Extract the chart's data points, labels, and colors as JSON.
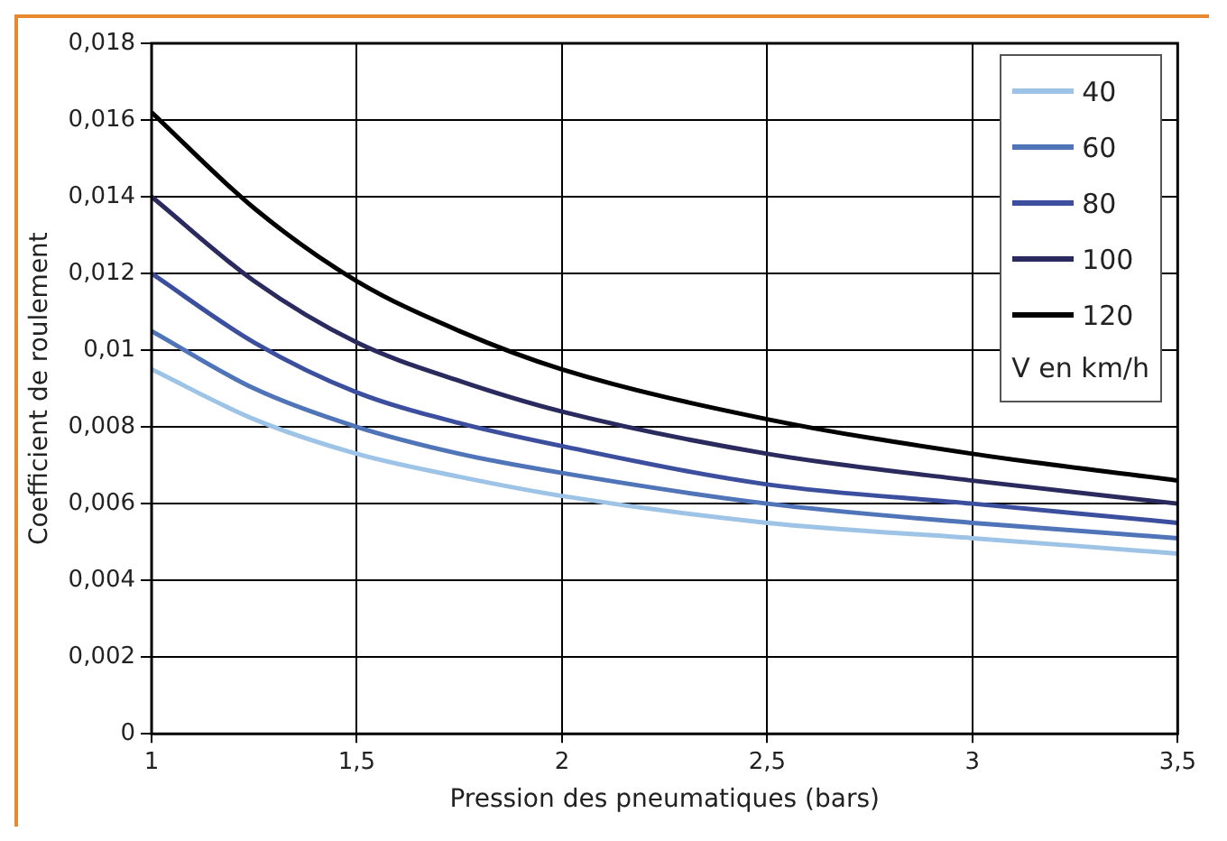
{
  "chart_data": {
    "type": "line",
    "xlabel": "Pression des pneumatiques (bars)",
    "ylabel": "Coefficient de roulement",
    "legend_title": "V en km/h",
    "legend": "top right",
    "grid": true,
    "marker": "none",
    "line_style": "solid",
    "x": [
      1,
      1.25,
      1.5,
      1.75,
      2,
      2.5,
      3,
      3.5
    ],
    "xlim": [
      1,
      3.5
    ],
    "xticks": [
      1,
      {
        "value": 1.5,
        "label": "1,5"
      },
      2,
      {
        "value": 2.5,
        "label": "2,5"
      },
      3,
      {
        "value": 3.5,
        "label": "3,5"
      }
    ],
    "ylim": [
      0,
      0.018
    ],
    "yticks": [
      0,
      {
        "value": 0.002,
        "label": "0,002"
      },
      {
        "value": 0.004,
        "label": "0,004"
      },
      {
        "value": 0.006,
        "label": "0,006"
      },
      {
        "value": 0.008,
        "label": "0,008"
      },
      {
        "value": 0.01,
        "label": "0,01"
      },
      {
        "value": 0.012,
        "label": "0,012"
      },
      {
        "value": 0.014,
        "label": "0,014"
      },
      {
        "value": 0.016,
        "label": "0,016"
      },
      {
        "value": 0.018,
        "label": "0,018"
      }
    ],
    "series": [
      {
        "name": "40",
        "color": "#9dc3e6",
        "values": [
          0.0095,
          0.0082,
          0.0073,
          0.0067,
          0.0062,
          0.0055,
          0.0051,
          0.0047
        ]
      },
      {
        "name": "60",
        "color": "#4f74b8",
        "values": [
          0.0105,
          0.009,
          0.008,
          0.0073,
          0.0068,
          0.006,
          0.0055,
          0.0051
        ]
      },
      {
        "name": "80",
        "color": "#3c4f9e",
        "values": [
          0.012,
          0.0102,
          0.0089,
          0.0081,
          0.0075,
          0.0065,
          0.006,
          0.0055
        ]
      },
      {
        "name": "100",
        "color": "#2a2a5e",
        "values": [
          0.014,
          0.0118,
          0.0102,
          0.0092,
          0.0084,
          0.0073,
          0.0066,
          0.006
        ]
      },
      {
        "name": "120",
        "color": "#000000",
        "values": [
          0.0162,
          0.0137,
          0.0118,
          0.0105,
          0.0095,
          0.0082,
          0.0073,
          0.0066
        ]
      }
    ]
  }
}
